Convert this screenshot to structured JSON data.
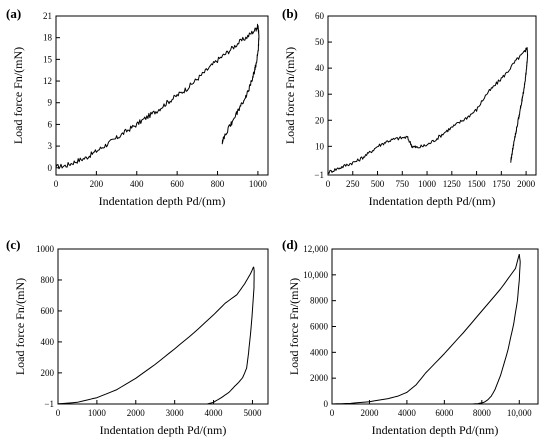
{
  "chart_data": [
    {
      "panel": "(a)",
      "type": "line",
      "xlabel": "Indentation depth  Pd/(nm)",
      "ylabel": "Load force  Fn/(mN)",
      "xlim": [
        0,
        1050
      ],
      "ylim": [
        -1,
        21
      ],
      "xticks": [
        0,
        200,
        400,
        600,
        800,
        1000
      ],
      "xtick_labels": [
        "0",
        "200",
        "400",
        "600",
        "800",
        "1000"
      ],
      "yticks": [
        0,
        3,
        6,
        9,
        12,
        15,
        18,
        21
      ],
      "ytick_labels": [
        "0",
        "3",
        "6",
        "9",
        "12",
        "15",
        "18",
        "21"
      ],
      "noise": 0.35,
      "series": [
        {
          "x": [
            0,
            50,
            100,
            150,
            200,
            250,
            300,
            350,
            400,
            450,
            500,
            550,
            600,
            650,
            700,
            750,
            800,
            850,
            900,
            950,
            990,
            1000
          ],
          "y": [
            0.1,
            0.3,
            0.9,
            1.4,
            2.3,
            3.2,
            4.1,
            5.1,
            6.0,
            7.0,
            7.9,
            9.0,
            10.0,
            11.0,
            12.3,
            13.6,
            14.9,
            16.0,
            17.2,
            18.2,
            19.2,
            19.6
          ]
        },
        {
          "x": [
            1000,
            1003,
            1005,
            1002,
            995,
            985,
            970,
            950,
            925,
            900,
            870,
            845,
            830,
            822
          ],
          "y": [
            19.6,
            19.0,
            18.2,
            16.5,
            15.0,
            13.6,
            12.0,
            10.5,
            9.0,
            7.8,
            6.2,
            5.0,
            4.0,
            3.4
          ]
        }
      ]
    },
    {
      "panel": "(b)",
      "type": "line",
      "xlabel": "Indentation depth  Pd/(nm)",
      "ylabel": "Load force  Fn/(mN)",
      "xlim": [
        0,
        2100
      ],
      "ylim": [
        -1,
        60
      ],
      "xticks": [
        0,
        250,
        500,
        750,
        1000,
        1250,
        1500,
        1750,
        2000
      ],
      "xtick_labels": [
        "0",
        "250",
        "500",
        "750",
        "1000",
        "1250",
        "1500",
        "1750",
        "2000"
      ],
      "yticks": [
        -1,
        10,
        20,
        30,
        40,
        50,
        60
      ],
      "ytick_labels": [
        "−1",
        "10",
        "20",
        "30",
        "40",
        "50",
        "60"
      ],
      "noise": 0.7,
      "series": [
        {
          "x": [
            0,
            100,
            200,
            300,
            400,
            500,
            600,
            700,
            800,
            850,
            900,
            1000,
            1100,
            1200,
            1300,
            1400,
            1500,
            1600,
            1700,
            1800,
            1900,
            1980,
            2010
          ],
          "y": [
            0,
            1.5,
            3,
            4.5,
            7,
            10,
            12,
            13,
            13.5,
            10,
            9.5,
            10.5,
            13,
            16,
            18.5,
            21,
            24,
            30,
            34,
            38,
            43,
            46,
            48
          ]
        },
        {
          "x": [
            2010,
            2015,
            2005,
            1990,
            1970,
            1950,
            1930,
            1910,
            1890,
            1870,
            1855,
            1845
          ],
          "y": [
            48,
            45,
            40,
            35,
            30,
            26,
            22,
            18,
            14,
            10,
            6.5,
            4
          ]
        }
      ]
    },
    {
      "panel": "(c)",
      "type": "line",
      "xlabel": "Indentation depth  Pd/(nm)",
      "ylabel": "Load force  Fn/(mN)",
      "xlim": [
        0,
        5400
      ],
      "ylim": [
        -1,
        1000
      ],
      "xticks": [
        0,
        1000,
        2000,
        3000,
        4000,
        5000
      ],
      "xtick_labels": [
        "0",
        "1000",
        "2000",
        "3000",
        "4000",
        "5000"
      ],
      "yticks": [
        -1,
        200,
        400,
        600,
        800,
        1000
      ],
      "ytick_labels": [
        "−1",
        "200",
        "400",
        "600",
        "800",
        "1000"
      ],
      "noise": 0,
      "series": [
        {
          "x": [
            0,
            500,
            1000,
            1500,
            2000,
            2500,
            3000,
            3500,
            4000,
            4300,
            4600,
            4800,
            4950,
            5030
          ],
          "y": [
            0,
            10,
            40,
            90,
            165,
            255,
            355,
            460,
            575,
            650,
            705,
            775,
            840,
            885
          ]
        },
        {
          "x": [
            5030,
            5045,
            5040,
            5000,
            4950,
            4900,
            4850,
            4750,
            4650,
            4550,
            4400,
            4200,
            4000,
            3850
          ],
          "y": [
            885,
            860,
            750,
            600,
            450,
            330,
            230,
            170,
            140,
            115,
            75,
            40,
            10,
            0
          ]
        }
      ]
    },
    {
      "panel": "(d)",
      "type": "line",
      "xlabel": "Indentation depth  Pd/(nm)",
      "ylabel": "Load force  Fn/(mN)",
      "xlim": [
        0,
        11000
      ],
      "ylim": [
        0,
        12000
      ],
      "xticks": [
        0,
        2000,
        4000,
        6000,
        8000,
        10000
      ],
      "xtick_labels": [
        "0",
        "2000",
        "4000",
        "6000",
        "8000",
        "10,000"
      ],
      "yticks": [
        0,
        2000,
        4000,
        6000,
        8000,
        10000,
        12000
      ],
      "ytick_labels": [
        "0",
        "2000",
        "4000",
        "6000",
        "8000",
        "10,000",
        "12,000"
      ],
      "noise": 0,
      "series": [
        {
          "x": [
            0,
            1000,
            2000,
            3000,
            3500,
            4000,
            4500,
            5000,
            6000,
            7000,
            8000,
            9000,
            9800,
            10000
          ],
          "y": [
            0,
            50,
            180,
            420,
            600,
            900,
            1500,
            2400,
            3900,
            5500,
            7200,
            8900,
            10500,
            11600
          ]
        },
        {
          "x": [
            10000,
            10050,
            10000,
            9900,
            9700,
            9400,
            9000,
            8700,
            8500,
            8300,
            8100,
            7800,
            7500
          ],
          "y": [
            11600,
            11000,
            9600,
            8000,
            6200,
            4200,
            2200,
            1100,
            600,
            300,
            120,
            30,
            0
          ]
        }
      ]
    }
  ]
}
